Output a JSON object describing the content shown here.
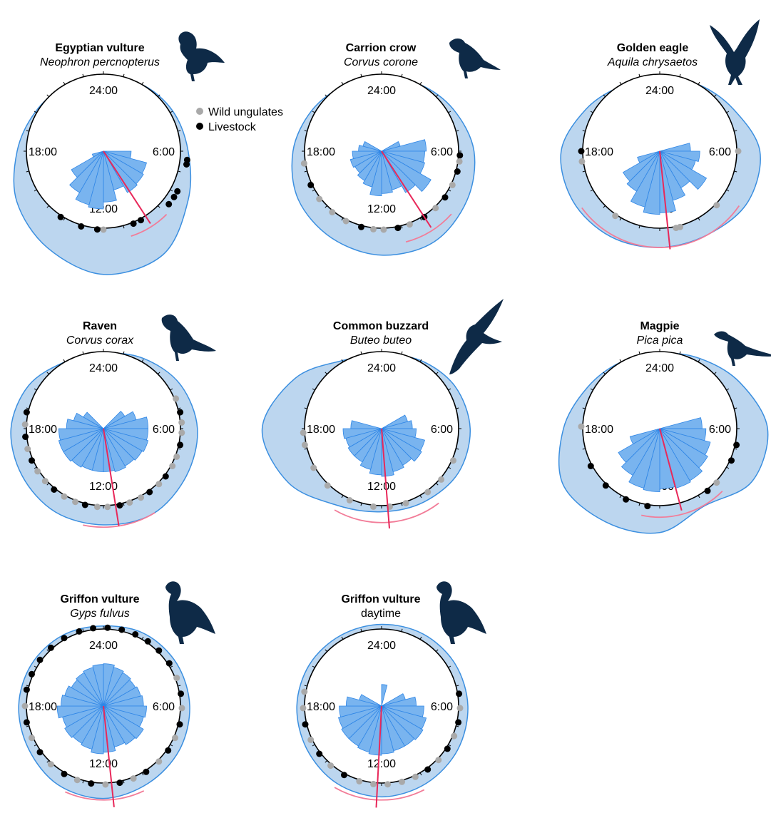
{
  "colors": {
    "density_fill": "#bcd6ef",
    "density_stroke": "#3b8fe0",
    "rose_fill": "#79b4ef",
    "rose_stroke": "#2f86e6",
    "mean_line": "#e8285a",
    "ci_arc": "#f27c98",
    "wild": "#a9a9a9",
    "livestock": "#000000",
    "silhouette": "#0e2a47"
  },
  "legend": {
    "wild_label": "Wild ungulates",
    "livestock_label": "Livestock"
  },
  "hour_labels": {
    "top": "24:00",
    "right": "6:00",
    "bottom": "12:00",
    "left": "18:00"
  },
  "chart_data": [
    {
      "type": "rose",
      "title": "Egyptian vulture",
      "subtitle": "Neophron percnopterus",
      "subtitle_italic": true,
      "silhouette_icon": "vulture-icon",
      "density_extent": [
        0.95,
        1.0,
        1.04,
        1.1,
        1.27,
        1.55,
        1.6,
        1.45,
        1.3,
        1.12,
        1.02,
        0.98
      ],
      "rose_values": [
        0,
        0,
        0,
        0,
        0,
        0,
        0.36,
        0.58,
        0.6,
        0.62,
        0.52,
        0.66,
        0.75,
        0.72,
        0.62,
        0.48,
        0.15,
        0,
        0,
        0,
        0,
        0,
        0,
        0
      ],
      "mean_hour": 9.8,
      "mean_length": 1.12,
      "ci_hours": [
        9.0,
        10.8
      ],
      "ci_radius": 1.16,
      "points": [
        {
          "hour": 6.4,
          "group": "livestock"
        },
        {
          "hour": 6.6,
          "group": "livestock"
        },
        {
          "hour": 7.9,
          "group": "livestock"
        },
        {
          "hour": 8.2,
          "group": "livestock"
        },
        {
          "hour": 8.6,
          "group": "livestock"
        },
        {
          "hour": 10.1,
          "group": "livestock"
        },
        {
          "hour": 10.5,
          "group": "livestock"
        },
        {
          "hour": 12.0,
          "group": "wild"
        },
        {
          "hour": 12.3,
          "group": "livestock"
        },
        {
          "hour": 13.1,
          "group": "livestock"
        },
        {
          "hour": 14.2,
          "group": "livestock"
        }
      ]
    },
    {
      "type": "rose",
      "title": "Carrion crow",
      "subtitle": "Corvus corone",
      "subtitle_italic": true,
      "silhouette_icon": "crow-icon",
      "density_extent": [
        0.95,
        1.0,
        1.08,
        1.2,
        1.28,
        1.36,
        1.35,
        1.3,
        1.25,
        1.15,
        1.05,
        0.98
      ],
      "rose_values": [
        0,
        0,
        0,
        0,
        0.25,
        0.58,
        0.56,
        0.58,
        0.74,
        0.62,
        0.52,
        0.55,
        0.58,
        0.48,
        0.44,
        0.4,
        0.42,
        0.38,
        0.3,
        0.25,
        0,
        0,
        0,
        0
      ],
      "mean_hour": 9.8,
      "mean_length": 1.18,
      "ci_hours": [
        8.8,
        11.0
      ],
      "ci_radius": 1.22,
      "points": [
        {
          "hour": 6.2,
          "group": "livestock"
        },
        {
          "hour": 6.5,
          "group": "wild"
        },
        {
          "hour": 7.0,
          "group": "livestock"
        },
        {
          "hour": 7.7,
          "group": "wild"
        },
        {
          "hour": 8.4,
          "group": "livestock"
        },
        {
          "hour": 9.1,
          "group": "wild"
        },
        {
          "hour": 9.8,
          "group": "livestock"
        },
        {
          "hour": 10.6,
          "group": "wild"
        },
        {
          "hour": 11.2,
          "group": "livestock"
        },
        {
          "hour": 11.9,
          "group": "wild"
        },
        {
          "hour": 12.4,
          "group": "wild"
        },
        {
          "hour": 13.0,
          "group": "livestock"
        },
        {
          "hour": 13.8,
          "group": "wild"
        },
        {
          "hour": 14.6,
          "group": "wild"
        },
        {
          "hour": 15.5,
          "group": "wild"
        },
        {
          "hour": 16.3,
          "group": "livestock"
        },
        {
          "hour": 17.4,
          "group": "wild"
        }
      ]
    },
    {
      "type": "rose",
      "title": "Golden eagle",
      "subtitle": "Aquila chrysaetos",
      "subtitle_italic": true,
      "silhouette_icon": "eagle-icon",
      "density_extent": [
        0.95,
        1.0,
        1.1,
        1.3,
        1.32,
        1.25,
        1.25,
        1.28,
        1.3,
        1.28,
        1.1,
        0.98
      ],
      "rose_values": [
        0,
        0,
        0,
        0,
        0,
        0.4,
        0.52,
        0.48,
        0.7,
        0.55,
        0.66,
        0.8,
        0.82,
        0.75,
        0.6,
        0.55,
        0.3,
        0,
        0,
        0,
        0,
        0,
        0,
        0
      ],
      "mean_hour": 11.6,
      "mean_length": 1.28,
      "ci_hours": [
        8.3,
        15.6
      ],
      "ci_radius": 1.25,
      "points": [
        {
          "hour": 6.0,
          "group": "wild"
        },
        {
          "hour": 8.9,
          "group": "wild"
        },
        {
          "hour": 11.0,
          "group": "wild"
        },
        {
          "hour": 11.2,
          "group": "wild"
        },
        {
          "hour": 14.3,
          "group": "wild"
        },
        {
          "hour": 17.5,
          "group": "wild"
        },
        {
          "hour": 18.0,
          "group": "livestock"
        }
      ]
    },
    {
      "type": "rose",
      "title": "Raven",
      "subtitle": "Corvus corax",
      "subtitle_italic": true,
      "silhouette_icon": "raven-icon",
      "density_extent": [
        0.98,
        1.05,
        1.15,
        1.22,
        1.24,
        1.28,
        1.25,
        1.25,
        1.22,
        1.2,
        1.12,
        1.0
      ],
      "rose_values": [
        0,
        0,
        0,
        0.32,
        0.44,
        0.58,
        0.58,
        0.6,
        0.58,
        0.56,
        0.58,
        0.56,
        0.56,
        0.56,
        0.58,
        0.6,
        0.6,
        0.58,
        0.48,
        0.4,
        0.3,
        0,
        0,
        0
      ],
      "mean_hour": 11.4,
      "mean_length": 1.28,
      "ci_hours": [
        9.9,
        12.8
      ],
      "ci_radius": 1.28,
      "points": [
        {
          "hour": 4.5,
          "group": "wild"
        },
        {
          "hour": 5.2,
          "group": "livestock"
        },
        {
          "hour": 5.7,
          "group": "wild"
        },
        {
          "hour": 6.2,
          "group": "wild"
        },
        {
          "hour": 6.8,
          "group": "livestock"
        },
        {
          "hour": 7.4,
          "group": "wild"
        },
        {
          "hour": 7.9,
          "group": "wild"
        },
        {
          "hour": 8.5,
          "group": "livestock"
        },
        {
          "hour": 9.0,
          "group": "wild"
        },
        {
          "hour": 9.6,
          "group": "livestock"
        },
        {
          "hour": 10.1,
          "group": "wild"
        },
        {
          "hour": 10.7,
          "group": "wild"
        },
        {
          "hour": 11.2,
          "group": "livestock"
        },
        {
          "hour": 11.8,
          "group": "wild"
        },
        {
          "hour": 12.3,
          "group": "wild"
        },
        {
          "hour": 12.9,
          "group": "livestock"
        },
        {
          "hour": 13.4,
          "group": "wild"
        },
        {
          "hour": 14.0,
          "group": "wild"
        },
        {
          "hour": 14.6,
          "group": "livestock"
        },
        {
          "hour": 15.2,
          "group": "wild"
        },
        {
          "hour": 15.8,
          "group": "wild"
        },
        {
          "hour": 16.4,
          "group": "livestock"
        },
        {
          "hour": 17.0,
          "group": "wild"
        },
        {
          "hour": 17.6,
          "group": "livestock"
        },
        {
          "hour": 18.2,
          "group": "wild"
        },
        {
          "hour": 18.8,
          "group": "livestock"
        }
      ]
    },
    {
      "type": "rose",
      "title": "Common buzzard",
      "subtitle": "Buteo buteo",
      "subtitle_italic": true,
      "silhouette_icon": "buzzard-icon",
      "density_extent": [
        0.95,
        1.02,
        1.1,
        1.15,
        1.15,
        1.1,
        1.08,
        1.15,
        1.4,
        1.55,
        1.3,
        1.02
      ],
      "rose_values": [
        0,
        0,
        0,
        0,
        0.35,
        0.4,
        0.45,
        0.58,
        0.6,
        0.55,
        0.58,
        0.62,
        0.6,
        0.55,
        0.5,
        0.5,
        0.48,
        0.5,
        0.4,
        0,
        0,
        0,
        0,
        0
      ],
      "mean_hour": 11.7,
      "mean_length": 1.3,
      "ci_hours": [
        9.5,
        14.0
      ],
      "ci_radius": 1.22,
      "points": [
        {
          "hour": 7.6,
          "group": "wild"
        },
        {
          "hour": 8.7,
          "group": "wild"
        },
        {
          "hour": 9.6,
          "group": "wild"
        },
        {
          "hour": 10.8,
          "group": "wild"
        },
        {
          "hour": 11.6,
          "group": "wild"
        },
        {
          "hour": 12.4,
          "group": "wild"
        },
        {
          "hour": 13.6,
          "group": "wild"
        },
        {
          "hour": 14.9,
          "group": "wild"
        },
        {
          "hour": 16.0,
          "group": "wild"
        },
        {
          "hour": 17.2,
          "group": "wild"
        },
        {
          "hour": 17.8,
          "group": "wild"
        }
      ]
    },
    {
      "type": "rose",
      "title": "Magpie",
      "subtitle": "Pica pica",
      "subtitle_italic": true,
      "silhouette_icon": "magpie-icon",
      "density_extent": [
        0.98,
        1.05,
        1.2,
        1.4,
        1.38,
        1.16,
        1.35,
        1.4,
        1.45,
        1.25,
        1.08,
        1.0
      ],
      "rose_values": [
        0,
        0,
        0,
        0,
        0,
        0.55,
        0.6,
        0.68,
        0.72,
        0.78,
        0.8,
        0.78,
        0.82,
        0.8,
        0.7,
        0.62,
        0.4,
        0,
        0,
        0,
        0,
        0,
        0,
        0
      ],
      "mean_hour": 11.0,
      "mean_length": 1.1,
      "ci_hours": [
        9.0,
        12.8
      ],
      "ci_radius": 1.15,
      "points": [
        {
          "hour": 6.8,
          "group": "livestock"
        },
        {
          "hour": 7.6,
          "group": "livestock"
        },
        {
          "hour": 8.9,
          "group": "wild"
        },
        {
          "hour": 9.5,
          "group": "livestock"
        },
        {
          "hour": 12.6,
          "group": "livestock"
        },
        {
          "hour": 13.7,
          "group": "livestock"
        },
        {
          "hour": 14.9,
          "group": "livestock"
        },
        {
          "hour": 16.1,
          "group": "livestock"
        },
        {
          "hour": 18.1,
          "group": "wild"
        }
      ]
    },
    {
      "type": "rose",
      "title": "Griffon vulture",
      "subtitle": "Gyps fulvus",
      "subtitle_italic": true,
      "silhouette_icon": "griffon-vulture-icon",
      "density_extent": [
        1.04,
        1.08,
        1.1,
        1.12,
        1.14,
        1.16,
        1.2,
        1.18,
        1.12,
        1.1,
        1.08,
        1.06
      ],
      "rose_values": [
        0.55,
        0.52,
        0.5,
        0.48,
        0.5,
        0.52,
        0.56,
        0.54,
        0.6,
        0.58,
        0.55,
        0.6,
        0.62,
        0.58,
        0.56,
        0.58,
        0.55,
        0.6,
        0.55,
        0.52,
        0.48,
        0.5,
        0.52,
        0.54
      ],
      "mean_hour": 11.6,
      "mean_length": 1.32,
      "ci_hours": [
        10.3,
        13.6
      ],
      "ci_radius": 1.22,
      "points": [
        {
          "hour": 0.2,
          "group": "livestock"
        },
        {
          "hour": 0.9,
          "group": "livestock"
        },
        {
          "hour": 1.6,
          "group": "livestock"
        },
        {
          "hour": 2.3,
          "group": "livestock"
        },
        {
          "hour": 3.0,
          "group": "livestock"
        },
        {
          "hour": 3.8,
          "group": "livestock"
        },
        {
          "hour": 4.6,
          "group": "wild"
        },
        {
          "hour": 5.4,
          "group": "livestock"
        },
        {
          "hour": 6.1,
          "group": "wild"
        },
        {
          "hour": 6.9,
          "group": "livestock"
        },
        {
          "hour": 7.6,
          "group": "wild"
        },
        {
          "hour": 8.3,
          "group": "livestock"
        },
        {
          "hour": 9.0,
          "group": "wild"
        },
        {
          "hour": 9.8,
          "group": "livestock"
        },
        {
          "hour": 10.5,
          "group": "wild"
        },
        {
          "hour": 11.2,
          "group": "livestock"
        },
        {
          "hour": 11.9,
          "group": "wild"
        },
        {
          "hour": 12.6,
          "group": "livestock"
        },
        {
          "hour": 13.3,
          "group": "wild"
        },
        {
          "hour": 14.0,
          "group": "livestock"
        },
        {
          "hour": 14.8,
          "group": "wild"
        },
        {
          "hour": 15.6,
          "group": "livestock"
        },
        {
          "hour": 16.4,
          "group": "wild"
        },
        {
          "hour": 17.2,
          "group": "livestock"
        },
        {
          "hour": 18.0,
          "group": "wild"
        },
        {
          "hour": 18.8,
          "group": "livestock"
        },
        {
          "hour": 19.6,
          "group": "livestock"
        },
        {
          "hour": 20.4,
          "group": "livestock"
        },
        {
          "hour": 21.2,
          "group": "livestock"
        },
        {
          "hour": 22.0,
          "group": "livestock"
        },
        {
          "hour": 22.8,
          "group": "livestock"
        },
        {
          "hour": 23.5,
          "group": "livestock"
        }
      ]
    },
    {
      "type": "rose",
      "title": "Griffon vulture",
      "subtitle": "daytime",
      "subtitle_italic": false,
      "silhouette_icon": "griffon-vulture-icon",
      "density_extent": [
        1.06,
        1.08,
        1.1,
        1.12,
        1.14,
        1.16,
        1.18,
        1.16,
        1.12,
        1.1,
        1.08,
        1.06
      ],
      "rose_values": [
        0.28,
        0,
        0,
        0,
        0.32,
        0.45,
        0.55,
        0.6,
        0.62,
        0.6,
        0.6,
        0.62,
        0.64,
        0.62,
        0.6,
        0.6,
        0.58,
        0.55,
        0.46,
        0.3,
        0,
        0,
        0,
        0
      ],
      "mean_hour": 12.2,
      "mean_length": 1.32,
      "ci_hours": [
        10.2,
        14.0
      ],
      "ci_radius": 1.22,
      "points": [
        {
          "hour": 5.4,
          "group": "livestock"
        },
        {
          "hour": 6.1,
          "group": "wild"
        },
        {
          "hour": 6.8,
          "group": "livestock"
        },
        {
          "hour": 7.5,
          "group": "wild"
        },
        {
          "hour": 8.2,
          "group": "livestock"
        },
        {
          "hour": 8.9,
          "group": "wild"
        },
        {
          "hour": 9.6,
          "group": "livestock"
        },
        {
          "hour": 10.3,
          "group": "wild"
        },
        {
          "hour": 11.0,
          "group": "wild"
        },
        {
          "hour": 11.7,
          "group": "wild"
        },
        {
          "hour": 12.4,
          "group": "wild"
        },
        {
          "hour": 13.1,
          "group": "wild"
        },
        {
          "hour": 13.9,
          "group": "livestock"
        },
        {
          "hour": 14.7,
          "group": "wild"
        },
        {
          "hour": 15.5,
          "group": "livestock"
        },
        {
          "hour": 16.3,
          "group": "wild"
        },
        {
          "hour": 17.1,
          "group": "livestock"
        },
        {
          "hour": 17.9,
          "group": "wild"
        },
        {
          "hour": 18.7,
          "group": "wild"
        }
      ]
    }
  ]
}
